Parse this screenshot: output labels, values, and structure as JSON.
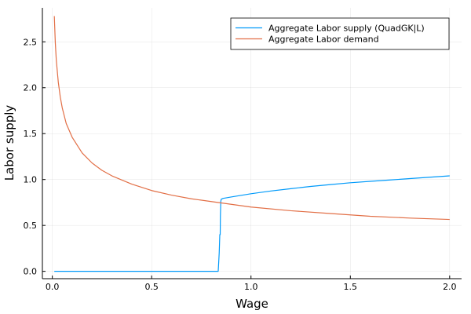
{
  "chart_data": {
    "type": "line",
    "title": "",
    "xlabel": "Wage",
    "ylabel": "Labor supply",
    "xlim": [
      -0.05,
      2.06
    ],
    "ylim": [
      -0.08,
      2.87
    ],
    "x_ticks": [
      0.0,
      0.5,
      1.0,
      1.5,
      2.0
    ],
    "x_tick_labels": [
      "0.0",
      "0.5",
      "1.0",
      "1.5",
      "2.0"
    ],
    "y_ticks": [
      0.0,
      0.5,
      1.0,
      1.5,
      2.0,
      2.5
    ],
    "y_tick_labels": [
      "0.0",
      "0.5",
      "1.0",
      "1.5",
      "2.0",
      "2.5"
    ],
    "grid": true,
    "legend_position": "top-right",
    "series": [
      {
        "name": "Aggregate Labor supply (QuadGK|L)",
        "color": "#009AFA",
        "x": [
          0.01,
          0.2,
          0.4,
          0.6,
          0.8,
          0.835,
          0.84,
          0.843,
          0.845,
          0.846,
          0.848,
          0.85,
          0.86,
          0.9,
          1.0,
          1.1,
          1.2,
          1.3,
          1.4,
          1.5,
          1.6,
          1.7,
          1.8,
          1.9,
          2.0
        ],
        "y": [
          0.0,
          0.0,
          0.0,
          0.0,
          0.0,
          0.0,
          0.2,
          0.4,
          0.4,
          0.6,
          0.76,
          0.785,
          0.795,
          0.81,
          0.845,
          0.875,
          0.9,
          0.925,
          0.945,
          0.965,
          0.98,
          0.995,
          1.01,
          1.025,
          1.04
        ]
      },
      {
        "name": "Aggregate Labor demand",
        "color": "#E26F46",
        "x": [
          0.01,
          0.015,
          0.02,
          0.03,
          0.04,
          0.05,
          0.07,
          0.1,
          0.15,
          0.2,
          0.25,
          0.3,
          0.4,
          0.5,
          0.6,
          0.7,
          0.8,
          0.9,
          1.0,
          1.2,
          1.4,
          1.6,
          1.8,
          2.0
        ],
        "y": [
          2.78,
          2.49,
          2.3,
          2.06,
          1.9,
          1.78,
          1.61,
          1.46,
          1.29,
          1.18,
          1.1,
          1.04,
          0.95,
          0.88,
          0.83,
          0.79,
          0.76,
          0.73,
          0.7,
          0.66,
          0.63,
          0.6,
          0.58,
          0.565
        ]
      }
    ]
  }
}
